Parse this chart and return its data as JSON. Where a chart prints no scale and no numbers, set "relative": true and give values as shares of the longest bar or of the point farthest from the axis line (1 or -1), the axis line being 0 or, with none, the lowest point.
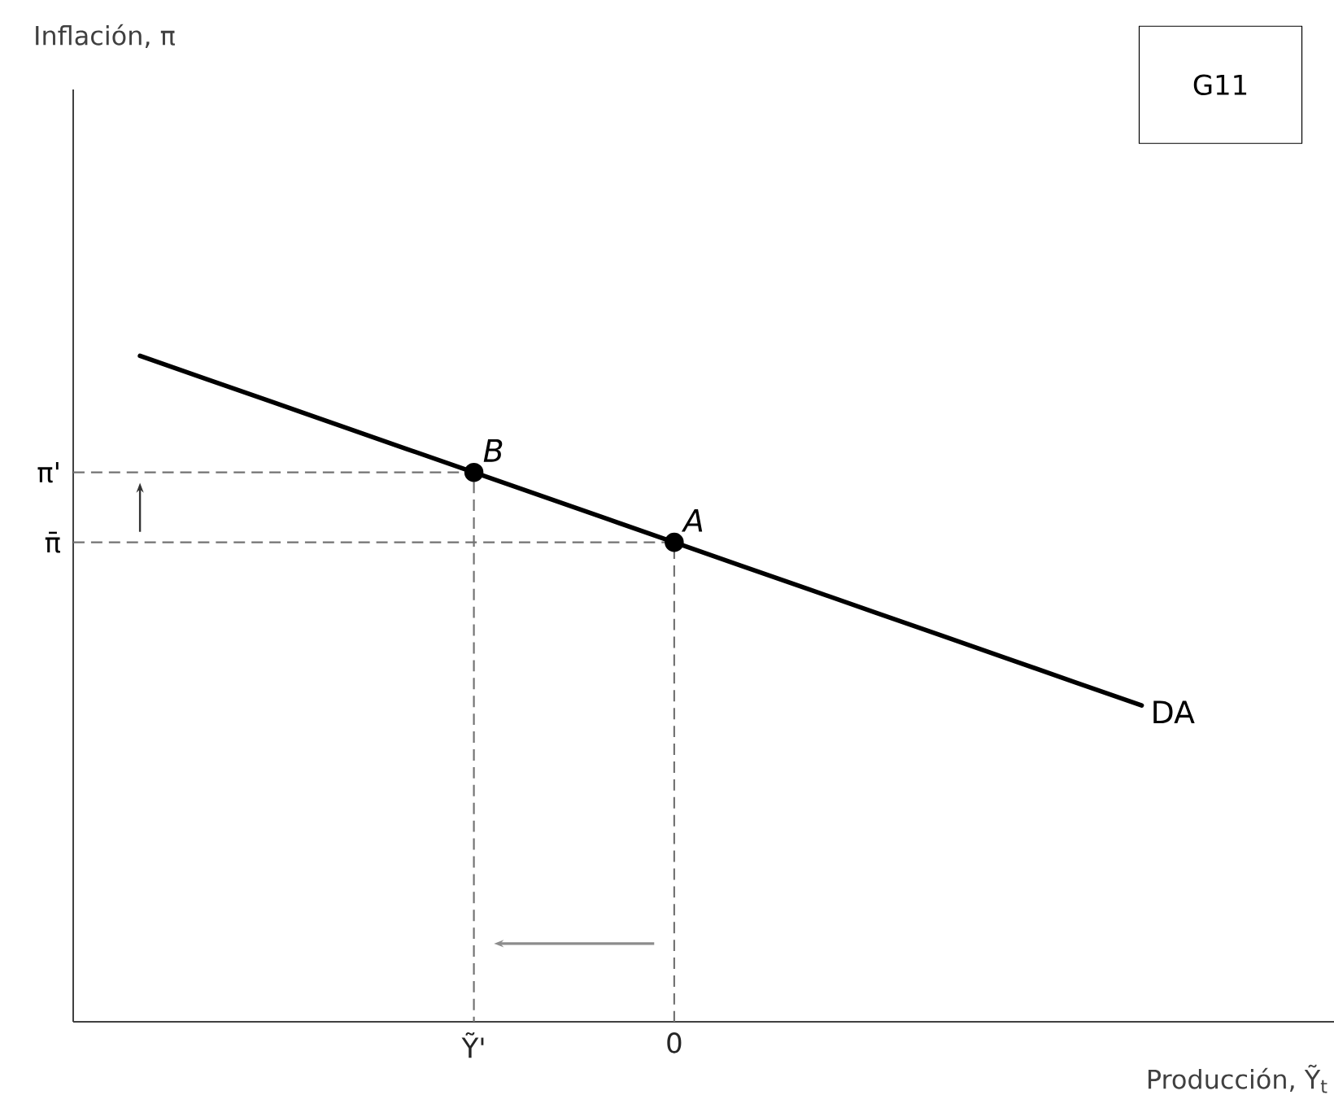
{
  "chart_data": {
    "type": "line",
    "relative": true,
    "xlabel": "Producción, Ỹ$_{t}$",
    "categories": [
      null,
      null,
      null,
      null,
      null,
      null,
      "Ỹ'",
      null,
      null,
      "0",
      null,
      null,
      null,
      null,
      null,
      null,
      null
    ],
    "series": [
      {
        "name": "DA",
        "color": "#000000",
        "values": [
          null,
          1.0,
          0.965,
          0.93,
          0.895,
          0.86,
          0.825,
          0.79,
          0.755,
          0.72,
          0.685,
          0.65,
          0.615,
          0.58,
          0.545,
          0.51,
          0.475
        ],
        "line_style": "solid",
        "marker": "none"
      },
      {
        "type": "scatter",
        "color": "#000000",
        "values": [
          null,
          null,
          null,
          null,
          null,
          null,
          0.825,
          null,
          null,
          0.72,
          null,
          null,
          null,
          null,
          null,
          null,
          null
        ],
        "marker": "circle"
      }
    ],
    "annotations": [
      "π'",
      "π̄",
      {
        "text": "B",
        "x": "Ỹ'",
        "y": 0.825
      },
      {
        "text": "A",
        "x": "0",
        "y": 0.72
      },
      "Inflación, π",
      "G11"
    ]
  }
}
